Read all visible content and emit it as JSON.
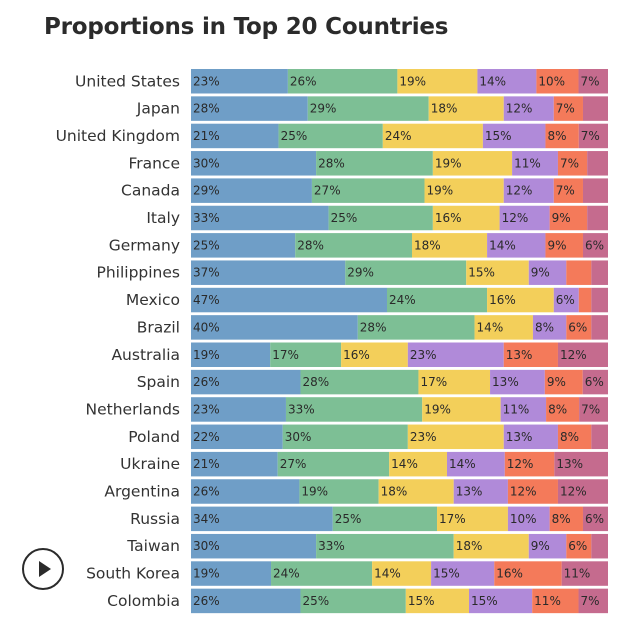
{
  "title": "Proportions in Top 20 Countries",
  "controls": {
    "play_icon": "play-icon"
  },
  "colors": [
    "#6f9ec7",
    "#7dbf95",
    "#f3cf5a",
    "#b08ad9",
    "#f47a5a",
    "#c56b8e"
  ],
  "chart_data": {
    "type": "bar",
    "orientation": "horizontal",
    "stacked": true,
    "categories": [
      "United States",
      "Japan",
      "United Kingdom",
      "France",
      "Canada",
      "Italy",
      "Germany",
      "Philippines",
      "Mexico",
      "Brazil",
      "Australia",
      "Spain",
      "Netherlands",
      "Poland",
      "Ukraine",
      "Argentina",
      "Russia",
      "Taiwan",
      "South Korea",
      "Colombia"
    ],
    "series": [
      {
        "values": [
          23,
          28,
          21,
          30,
          29,
          33,
          25,
          37,
          47,
          40,
          19,
          26,
          23,
          22,
          21,
          26,
          34,
          30,
          19,
          26
        ]
      },
      {
        "values": [
          26,
          29,
          25,
          28,
          27,
          25,
          28,
          29,
          24,
          28,
          17,
          28,
          33,
          30,
          27,
          19,
          25,
          33,
          24,
          25
        ]
      },
      {
        "values": [
          19,
          18,
          24,
          19,
          19,
          16,
          18,
          15,
          16,
          14,
          16,
          17,
          19,
          23,
          14,
          18,
          17,
          18,
          14,
          15
        ]
      },
      {
        "values": [
          14,
          12,
          15,
          11,
          12,
          12,
          14,
          9,
          6,
          8,
          23,
          13,
          11,
          13,
          14,
          13,
          10,
          9,
          15,
          15
        ]
      },
      {
        "values": [
          10,
          7,
          8,
          7,
          7,
          9,
          9,
          6,
          3,
          6,
          13,
          9,
          8,
          8,
          12,
          12,
          8,
          6,
          16,
          11
        ]
      },
      {
        "values": [
          7,
          6,
          7,
          5,
          6,
          5,
          6,
          4,
          4,
          4,
          12,
          6,
          7,
          4,
          13,
          12,
          6,
          4,
          11,
          7
        ]
      }
    ],
    "labels": [
      [
        "23%",
        "26%",
        "19%",
        "14%",
        "10%",
        "7%"
      ],
      [
        "28%",
        "29%",
        "18%",
        "12%",
        "7%",
        ""
      ],
      [
        "21%",
        "25%",
        "24%",
        "15%",
        "8%",
        "7%"
      ],
      [
        "30%",
        "28%",
        "19%",
        "11%",
        "7%",
        ""
      ],
      [
        "29%",
        "27%",
        "19%",
        "12%",
        "7%",
        ""
      ],
      [
        "33%",
        "25%",
        "16%",
        "12%",
        "9%",
        ""
      ],
      [
        "25%",
        "28%",
        "18%",
        "14%",
        "9%",
        "6%"
      ],
      [
        "37%",
        "29%",
        "15%",
        "9%",
        "",
        ""
      ],
      [
        "47%",
        "24%",
        "16%",
        "6%",
        "",
        ""
      ],
      [
        "40%",
        "28%",
        "14%",
        "8%",
        "6%",
        ""
      ],
      [
        "19%",
        "17%",
        "16%",
        "23%",
        "13%",
        "12%"
      ],
      [
        "26%",
        "28%",
        "17%",
        "13%",
        "9%",
        "6%"
      ],
      [
        "23%",
        "33%",
        "19%",
        "11%",
        "8%",
        "7%"
      ],
      [
        "22%",
        "30%",
        "23%",
        "13%",
        "8%",
        ""
      ],
      [
        "21%",
        "27%",
        "14%",
        "14%",
        "12%",
        "13%"
      ],
      [
        "26%",
        "19%",
        "18%",
        "13%",
        "12%",
        "12%"
      ],
      [
        "34%",
        "25%",
        "17%",
        "10%",
        "8%",
        "6%"
      ],
      [
        "30%",
        "33%",
        "18%",
        "9%",
        "6%",
        ""
      ],
      [
        "19%",
        "24%",
        "14%",
        "15%",
        "16%",
        "11%"
      ],
      [
        "26%",
        "25%",
        "15%",
        "15%",
        "11%",
        "7%"
      ]
    ],
    "xlim": [
      0,
      100
    ],
    "grid": false,
    "legend": "none"
  }
}
